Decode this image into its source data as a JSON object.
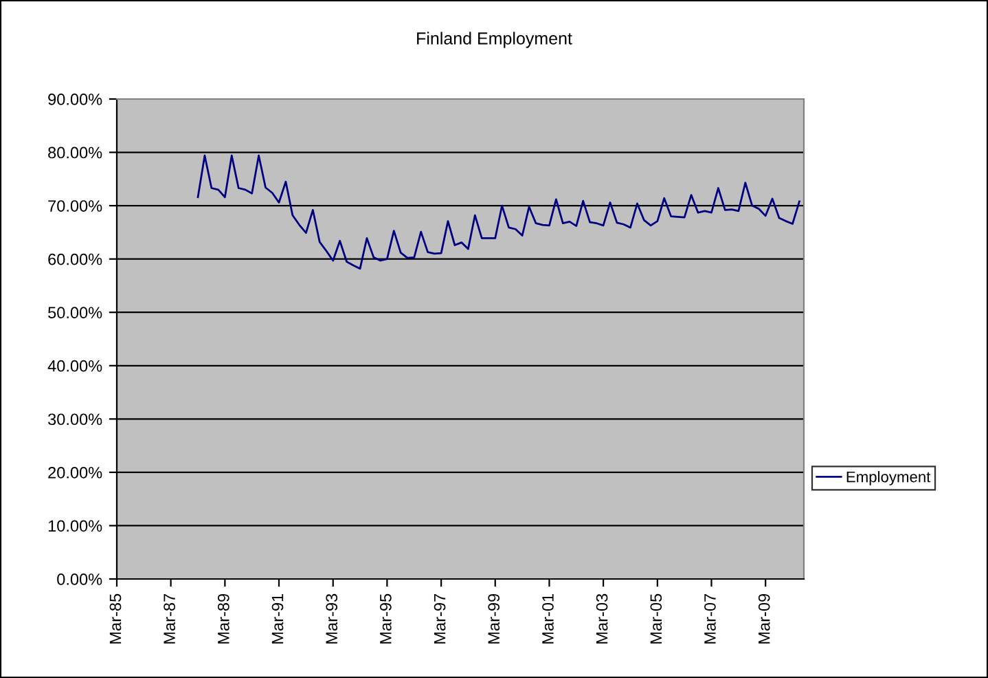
{
  "chart_data": {
    "type": "line",
    "title": "Finland Employment",
    "x": [
      "1988-03",
      "1988-06",
      "1988-09",
      "1988-12",
      "1989-03",
      "1989-06",
      "1989-09",
      "1989-12",
      "1990-03",
      "1990-06",
      "1990-09",
      "1990-12",
      "1991-03",
      "1991-06",
      "1991-09",
      "1991-12",
      "1992-03",
      "1992-06",
      "1992-09",
      "1992-12",
      "1993-03",
      "1993-06",
      "1993-09",
      "1993-12",
      "1994-03",
      "1994-06",
      "1994-09",
      "1994-12",
      "1995-03",
      "1995-06",
      "1995-09",
      "1995-12",
      "1996-03",
      "1996-06",
      "1996-09",
      "1996-12",
      "1997-03",
      "1997-06",
      "1997-09",
      "1997-12",
      "1998-03",
      "1998-06",
      "1998-09",
      "1998-12",
      "1999-03",
      "1999-06",
      "1999-09",
      "1999-12",
      "2000-03",
      "2000-06",
      "2000-09",
      "2000-12",
      "2001-03",
      "2001-06",
      "2001-09",
      "2001-12",
      "2002-03",
      "2002-06",
      "2002-09",
      "2002-12",
      "2003-03",
      "2003-06",
      "2003-09",
      "2003-12",
      "2004-03",
      "2004-06",
      "2004-09",
      "2004-12",
      "2005-03",
      "2005-06",
      "2005-09",
      "2005-12",
      "2006-03",
      "2006-06",
      "2006-09",
      "2006-12",
      "2007-03",
      "2007-06",
      "2007-09",
      "2007-12",
      "2008-03",
      "2008-06",
      "2008-09",
      "2008-12",
      "2009-03",
      "2009-06",
      "2009-09",
      "2009-12",
      "2010-03",
      "2010-06"
    ],
    "series": [
      {
        "name": "Employment",
        "color": "#000080",
        "values": [
          71.6,
          79.4,
          73.3,
          73.0,
          71.6,
          79.4,
          73.3,
          73.0,
          72.3,
          79.4,
          73.4,
          72.4,
          70.6,
          74.5,
          68.2,
          66.4,
          64.9,
          69.2,
          63.2,
          61.5,
          59.7,
          63.4,
          59.5,
          58.8,
          58.2,
          63.9,
          60.3,
          59.7,
          60.0,
          65.3,
          61.2,
          60.2,
          60.3,
          65.1,
          61.3,
          61.0,
          61.1,
          67.1,
          62.6,
          63.1,
          61.9,
          68.2,
          63.9,
          63.9,
          63.9,
          70.0,
          65.9,
          65.6,
          64.4,
          69.8,
          66.7,
          66.4,
          66.3,
          71.2,
          66.7,
          67.0,
          66.2,
          70.9,
          66.9,
          66.7,
          66.3,
          70.6,
          66.8,
          66.5,
          65.9,
          70.4,
          67.3,
          66.3,
          67.1,
          71.4,
          68.0,
          67.9,
          67.8,
          72.0,
          68.7,
          69.0,
          68.7,
          73.3,
          69.2,
          69.3,
          69.0,
          74.3,
          70.0,
          69.4,
          68.1,
          71.3,
          67.7,
          67.1,
          66.6,
          70.8
        ]
      }
    ],
    "xlim": [
      "1985-03",
      "2010-08"
    ],
    "xticks": [
      {
        "value": "1985-03",
        "label": "Mar-85"
      },
      {
        "value": "1987-03",
        "label": "Mar-87"
      },
      {
        "value": "1989-03",
        "label": "Mar-89"
      },
      {
        "value": "1991-03",
        "label": "Mar-91"
      },
      {
        "value": "1993-03",
        "label": "Mar-93"
      },
      {
        "value": "1995-03",
        "label": "Mar-95"
      },
      {
        "value": "1997-03",
        "label": "Mar-97"
      },
      {
        "value": "1999-03",
        "label": "Mar-99"
      },
      {
        "value": "2001-03",
        "label": "Mar-01"
      },
      {
        "value": "2003-03",
        "label": "Mar-03"
      },
      {
        "value": "2005-03",
        "label": "Mar-05"
      },
      {
        "value": "2007-03",
        "label": "Mar-07"
      },
      {
        "value": "2009-03",
        "label": "Mar-09"
      }
    ],
    "ylim": [
      0,
      90
    ],
    "yticks": [
      {
        "value": 0,
        "label": "0.00%"
      },
      {
        "value": 10,
        "label": "10.00%"
      },
      {
        "value": 20,
        "label": "20.00%"
      },
      {
        "value": 30,
        "label": "30.00%"
      },
      {
        "value": 40,
        "label": "40.00%"
      },
      {
        "value": 50,
        "label": "50.00%"
      },
      {
        "value": 60,
        "label": "60.00%"
      },
      {
        "value": 70,
        "label": "70.00%"
      },
      {
        "value": 80,
        "label": "80.00%"
      },
      {
        "value": 90,
        "label": "90.00%"
      }
    ],
    "grid": "y",
    "legend": "right"
  }
}
